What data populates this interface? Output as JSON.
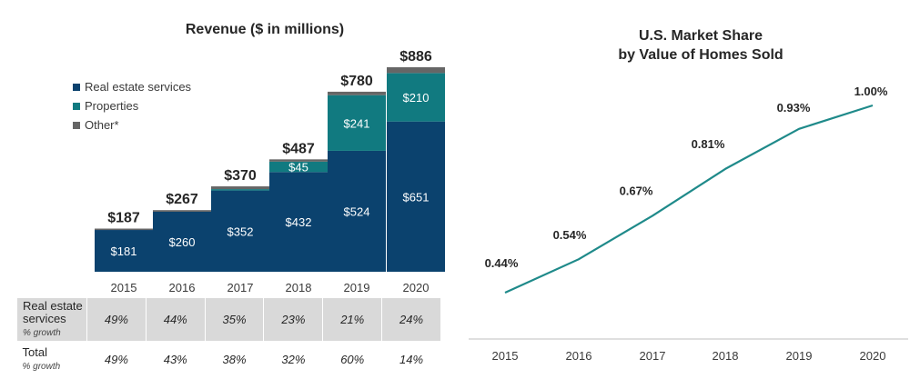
{
  "colors": {
    "real_estate_services": "#0b426e",
    "properties": "#117a80",
    "other": "#666666",
    "line": "#1f8a8a",
    "axis": "#bfbfbf",
    "table_band": "#d9d9d9"
  },
  "chart_data": [
    {
      "type": "bar",
      "stacked": true,
      "title": "Revenue ($ in millions)",
      "categories": [
        "2015",
        "2016",
        "2017",
        "2018",
        "2019",
        "2020"
      ],
      "series": [
        {
          "name": "Real estate services",
          "values": [
            181,
            260,
            352,
            432,
            524,
            651
          ],
          "labels": [
            "$181",
            "$260",
            "$352",
            "$432",
            "$524",
            "$651"
          ]
        },
        {
          "name": "Properties",
          "values": [
            0,
            0,
            6,
            45,
            241,
            210
          ],
          "labels": [
            "",
            "",
            "",
            "$45",
            "$241",
            "$210"
          ]
        },
        {
          "name": "Other*",
          "values": [
            6,
            7,
            12,
            10,
            15,
            25
          ],
          "labels": [
            "",
            "",
            "",
            "",
            "",
            ""
          ]
        }
      ],
      "totals": [
        187,
        267,
        370,
        487,
        780,
        886
      ],
      "total_labels": [
        "$187",
        "$267",
        "$370",
        "$487",
        "$780",
        "$886"
      ],
      "legend_position": "top-left",
      "ylim": [
        0,
        900
      ]
    },
    {
      "type": "line",
      "title_lines": [
        "U.S. Market Share",
        "by Value of Homes Sold"
      ],
      "x": [
        "2015",
        "2016",
        "2017",
        "2018",
        "2019",
        "2020"
      ],
      "values": [
        0.44,
        0.54,
        0.67,
        0.81,
        0.93,
        1.0
      ],
      "value_labels": [
        "0.44%",
        "0.54%",
        "0.67%",
        "0.81%",
        "0.93%",
        "1.00%"
      ],
      "ylabel": "",
      "xlabel": ""
    }
  ],
  "growth_table": {
    "rows": [
      {
        "label": "Real estate services",
        "label_line1": "Real estate",
        "label_line2": "services",
        "sub": "% growth",
        "values": [
          "49%",
          "44%",
          "35%",
          "23%",
          "21%",
          "24%"
        ]
      },
      {
        "label": "Total",
        "label_line1": "Total",
        "label_line2": "",
        "sub": "% growth",
        "values": [
          "49%",
          "43%",
          "38%",
          "32%",
          "60%",
          "14%"
        ]
      }
    ]
  }
}
